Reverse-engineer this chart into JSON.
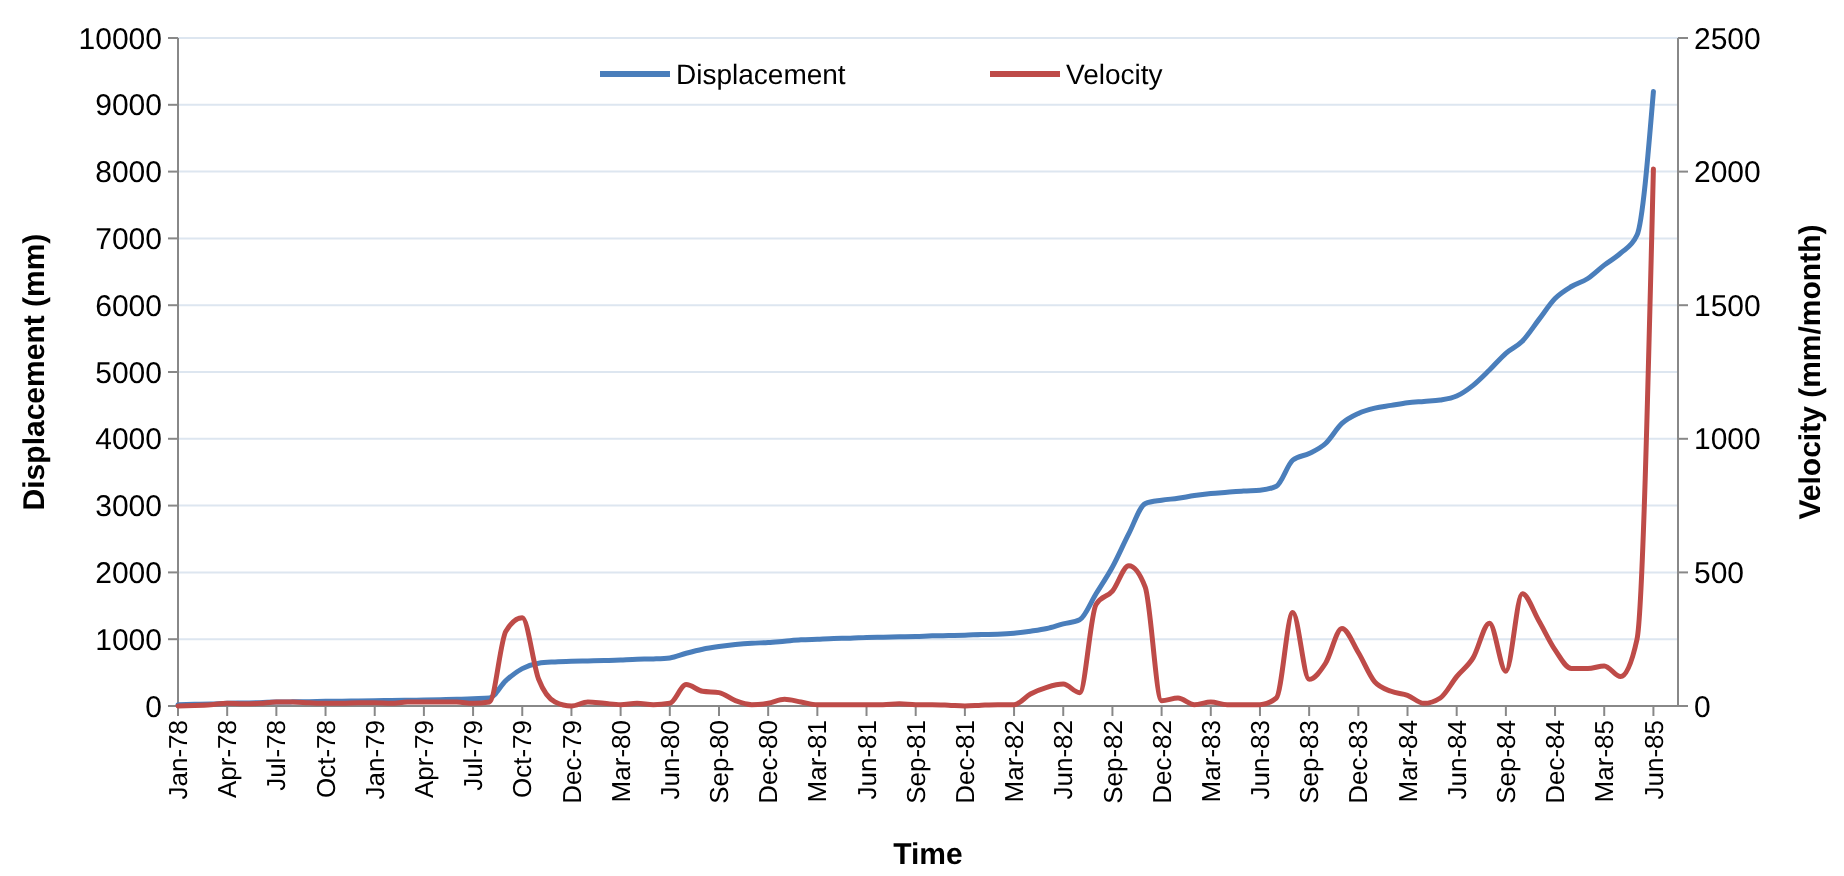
{
  "chart_data": {
    "type": "line",
    "xlabel": "Time",
    "ylabel": "Displacement (mm)",
    "y2label": "Velocity (mm/month)",
    "categories": [
      "Jan-78",
      null,
      null,
      "Apr-78",
      null,
      null,
      "Jul-78",
      null,
      null,
      "Oct-78",
      null,
      null,
      "Jan-79",
      null,
      null,
      "Apr-79",
      null,
      null,
      "Jul-79",
      null,
      null,
      "Oct-79",
      null,
      null,
      "Dec-79",
      null,
      null,
      "Mar-80",
      null,
      null,
      "Jun-80",
      null,
      null,
      "Sep-80",
      null,
      null,
      "Dec-80",
      null,
      null,
      "Mar-81",
      null,
      null,
      "Jun-81",
      null,
      null,
      "Sep-81",
      null,
      null,
      "Dec-81",
      null,
      null,
      "Mar-82",
      null,
      null,
      "Jun-82",
      null,
      null,
      "Sep-82",
      null,
      null,
      "Dec-82",
      null,
      null,
      "Mar-83",
      null,
      null,
      "Jun-83",
      null,
      null,
      "Sep-83",
      null,
      null,
      "Dec-83",
      null,
      null,
      "Mar-84",
      null,
      null,
      "Jun-84",
      null,
      null,
      "Sep-84",
      null,
      null,
      "Dec-84",
      null,
      null,
      "Mar-85",
      null,
      null,
      "Jun-85"
    ],
    "series": [
      {
        "name": "Displacement",
        "color": "#4a7ebb",
        "values": [
          20,
          25,
          30,
          40,
          45,
          50,
          60,
          62,
          65,
          70,
          72,
          75,
          80,
          82,
          85,
          90,
          95,
          100,
          110,
          120,
          380,
          560,
          640,
          660,
          670,
          675,
          680,
          690,
          700,
          705,
          720,
          790,
          850,
          890,
          920,
          940,
          950,
          970,
          990,
          1000,
          1010,
          1015,
          1025,
          1030,
          1035,
          1040,
          1050,
          1055,
          1060,
          1070,
          1075,
          1090,
          1120,
          1160,
          1230,
          1290,
          1680,
          2080,
          2580,
          3030,
          3080,
          3110,
          3150,
          3180,
          3200,
          3220,
          3230,
          3290,
          3680,
          3780,
          3930,
          4230,
          4380,
          4460,
          4500,
          4540,
          4560,
          4580,
          4640,
          4800,
          5030,
          5280,
          5460,
          5780,
          6100,
          6280,
          6400,
          6600,
          6780,
          7050,
          9200
        ]
      },
      {
        "name": "Velocity",
        "color": "#be4b48",
        "axis": "y2",
        "values": [
          0,
          2,
          5,
          10,
          8,
          10,
          15,
          15,
          12,
          10,
          10,
          12,
          12,
          10,
          15,
          15,
          15,
          15,
          10,
          15,
          280,
          330,
          100,
          15,
          0,
          15,
          10,
          5,
          10,
          5,
          10,
          80,
          55,
          50,
          20,
          5,
          10,
          25,
          15,
          5,
          5,
          5,
          5,
          5,
          8,
          5,
          5,
          3,
          0,
          3,
          5,
          5,
          45,
          70,
          82,
          50,
          380,
          430,
          525,
          445,
          20,
          30,
          5,
          15,
          5,
          5,
          5,
          30,
          350,
          100,
          160,
          290,
          200,
          90,
          55,
          40,
          10,
          30,
          110,
          180,
          310,
          130,
          420,
          320,
          210,
          140,
          140,
          150,
          110,
          250,
          2010
        ]
      }
    ],
    "ylim": [
      0,
      10000
    ],
    "yticks": [
      0,
      1000,
      2000,
      3000,
      4000,
      5000,
      6000,
      7000,
      8000,
      9000,
      10000
    ],
    "y2lim": [
      0,
      2500
    ],
    "y2ticks": [
      0,
      500,
      1000,
      1500,
      2000,
      2500
    ],
    "grid": "y",
    "legend": "top",
    "line_style": "solid",
    "marker": "none"
  }
}
